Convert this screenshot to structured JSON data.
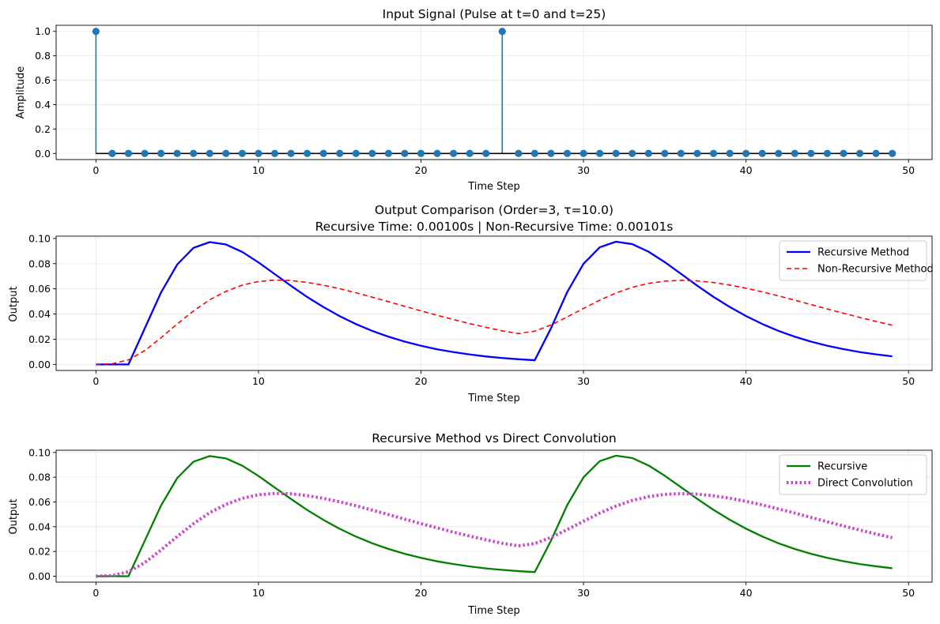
{
  "chart_data": [
    {
      "type": "stem",
      "title": "Input Signal (Pulse at t=0 and t=25)",
      "xlabel": "Time Step",
      "ylabel": "Amplitude",
      "xlim": [
        -2.45,
        51.45
      ],
      "ylim": [
        -0.05,
        1.05
      ],
      "xticks": [
        0,
        10,
        20,
        30,
        40,
        50
      ],
      "yticks": [
        0.0,
        0.2,
        0.4,
        0.6,
        0.8,
        1.0
      ],
      "ytick_labels": [
        "0.0",
        "0.2",
        "0.4",
        "0.6",
        "0.8",
        "1.0"
      ],
      "grid": true,
      "x": [
        0,
        1,
        2,
        3,
        4,
        5,
        6,
        7,
        8,
        9,
        10,
        11,
        12,
        13,
        14,
        15,
        16,
        17,
        18,
        19,
        20,
        21,
        22,
        23,
        24,
        25,
        26,
        27,
        28,
        29,
        30,
        31,
        32,
        33,
        34,
        35,
        36,
        37,
        38,
        39,
        40,
        41,
        42,
        43,
        44,
        45,
        46,
        47,
        48,
        49
      ],
      "values": [
        1,
        0,
        0,
        0,
        0,
        0,
        0,
        0,
        0,
        0,
        0,
        0,
        0,
        0,
        0,
        0,
        0,
        0,
        0,
        0,
        0,
        0,
        0,
        0,
        0,
        1,
        0,
        0,
        0,
        0,
        0,
        0,
        0,
        0,
        0,
        0,
        0,
        0,
        0,
        0,
        0,
        0,
        0,
        0,
        0,
        0,
        0,
        0,
        0,
        0
      ],
      "colors": {
        "stem": "#1f77b4",
        "baseline": "#000000"
      }
    },
    {
      "type": "line",
      "title": "Output Comparison (Order=3, τ=10.0)",
      "subtitle": "Recursive Time: 0.00100s | Non-Recursive Time: 0.00101s",
      "xlabel": "Time Step",
      "ylabel": "Output",
      "xlim": [
        -2.45,
        51.45
      ],
      "ylim": [
        -0.0048,
        0.1018
      ],
      "xticks": [
        0,
        10,
        20,
        30,
        40,
        50
      ],
      "yticks": [
        0.0,
        0.02,
        0.04,
        0.06,
        0.08,
        0.1
      ],
      "ytick_labels": [
        "0.00",
        "0.02",
        "0.04",
        "0.06",
        "0.08",
        "0.10"
      ],
      "grid": true,
      "legend": "upper right",
      "x": [
        0,
        1,
        2,
        3,
        4,
        5,
        6,
        7,
        8,
        9,
        10,
        11,
        12,
        13,
        14,
        15,
        16,
        17,
        18,
        19,
        20,
        21,
        22,
        23,
        24,
        25,
        26,
        27,
        28,
        29,
        30,
        31,
        32,
        33,
        34,
        35,
        36,
        37,
        38,
        39,
        40,
        41,
        42,
        43,
        44,
        45,
        46,
        47,
        48,
        49
      ],
      "series": [
        {
          "name": "Recursive Method",
          "color": "#0000ff",
          "dash": "solid",
          "width": 2.3,
          "values": [
            0,
            0,
            0,
            0.0285,
            0.057,
            0.0793,
            0.0925,
            0.0971,
            0.0952,
            0.0893,
            0.081,
            0.0717,
            0.0624,
            0.0535,
            0.0455,
            0.0383,
            0.032,
            0.0266,
            0.022,
            0.0181,
            0.0148,
            0.012,
            0.0098,
            0.0079,
            0.0063,
            0.0051,
            0.0041,
            0.0033,
            0.0287,
            0.0575,
            0.0799,
            0.093,
            0.0974,
            0.0955,
            0.0895,
            0.0812,
            0.0719,
            0.0625,
            0.0536,
            0.0456,
            0.0384,
            0.0321,
            0.0266,
            0.022,
            0.0181,
            0.0148,
            0.0121,
            0.0098,
            0.008,
            0.0064
          ]
        },
        {
          "name": "Non-Recursive Method",
          "color": "#ff0000",
          "dash": "6,4",
          "width": 1.6,
          "values": [
            0,
            0.0005,
            0.0036,
            0.0109,
            0.0211,
            0.0321,
            0.0424,
            0.0513,
            0.058,
            0.0629,
            0.0658,
            0.0669,
            0.0666,
            0.0651,
            0.0629,
            0.0601,
            0.0569,
            0.0534,
            0.0498,
            0.0461,
            0.0425,
            0.039,
            0.0356,
            0.0324,
            0.0294,
            0.0266,
            0.0245,
            0.0264,
            0.0313,
            0.0377,
            0.0444,
            0.051,
            0.0567,
            0.0612,
            0.0643,
            0.0661,
            0.0667,
            0.0663,
            0.065,
            0.063,
            0.0605,
            0.0576,
            0.0544,
            0.051,
            0.0475,
            0.044,
            0.0406,
            0.0373,
            0.0341,
            0.0311
          ]
        }
      ]
    },
    {
      "type": "line",
      "title": "Recursive Method vs Direct Convolution",
      "xlabel": "Time Step",
      "ylabel": "Output",
      "xlim": [
        -2.45,
        51.45
      ],
      "ylim": [
        -0.0048,
        0.1018
      ],
      "xticks": [
        0,
        10,
        20,
        30,
        40,
        50
      ],
      "yticks": [
        0.0,
        0.02,
        0.04,
        0.06,
        0.08,
        0.1
      ],
      "ytick_labels": [
        "0.00",
        "0.02",
        "0.04",
        "0.06",
        "0.08",
        "0.10"
      ],
      "grid": true,
      "legend": "upper right",
      "x": [
        0,
        1,
        2,
        3,
        4,
        5,
        6,
        7,
        8,
        9,
        10,
        11,
        12,
        13,
        14,
        15,
        16,
        17,
        18,
        19,
        20,
        21,
        22,
        23,
        24,
        25,
        26,
        27,
        28,
        29,
        30,
        31,
        32,
        33,
        34,
        35,
        36,
        37,
        38,
        39,
        40,
        41,
        42,
        43,
        44,
        45,
        46,
        47,
        48,
        49
      ],
      "series": [
        {
          "name": "Recursive",
          "color": "#008000",
          "dash": "solid",
          "width": 2.3,
          "values": [
            0,
            0,
            0,
            0.0285,
            0.057,
            0.0793,
            0.0925,
            0.0971,
            0.0952,
            0.0893,
            0.081,
            0.0717,
            0.0624,
            0.0535,
            0.0455,
            0.0383,
            0.032,
            0.0266,
            0.022,
            0.0181,
            0.0148,
            0.012,
            0.0098,
            0.0079,
            0.0063,
            0.0051,
            0.0041,
            0.0033,
            0.0287,
            0.0575,
            0.0799,
            0.093,
            0.0974,
            0.0955,
            0.0895,
            0.0812,
            0.0719,
            0.0625,
            0.0536,
            0.0456,
            0.0384,
            0.0321,
            0.0266,
            0.022,
            0.0181,
            0.0148,
            0.0121,
            0.0098,
            0.008,
            0.0064
          ]
        },
        {
          "name": "Direct Convolution",
          "color": "#cc44cc",
          "dash": "2.5,3",
          "width": 4,
          "values": [
            0,
            0.0005,
            0.0036,
            0.0109,
            0.0211,
            0.0321,
            0.0424,
            0.0513,
            0.058,
            0.0629,
            0.0658,
            0.0669,
            0.0666,
            0.0651,
            0.0629,
            0.0601,
            0.0569,
            0.0534,
            0.0498,
            0.0461,
            0.0425,
            0.039,
            0.0356,
            0.0324,
            0.0294,
            0.0266,
            0.0245,
            0.0264,
            0.0313,
            0.0377,
            0.0444,
            0.051,
            0.0567,
            0.0612,
            0.0643,
            0.0661,
            0.0667,
            0.0663,
            0.065,
            0.063,
            0.0605,
            0.0576,
            0.0544,
            0.051,
            0.0475,
            0.044,
            0.0406,
            0.0373,
            0.0341,
            0.0311
          ]
        }
      ]
    }
  ]
}
